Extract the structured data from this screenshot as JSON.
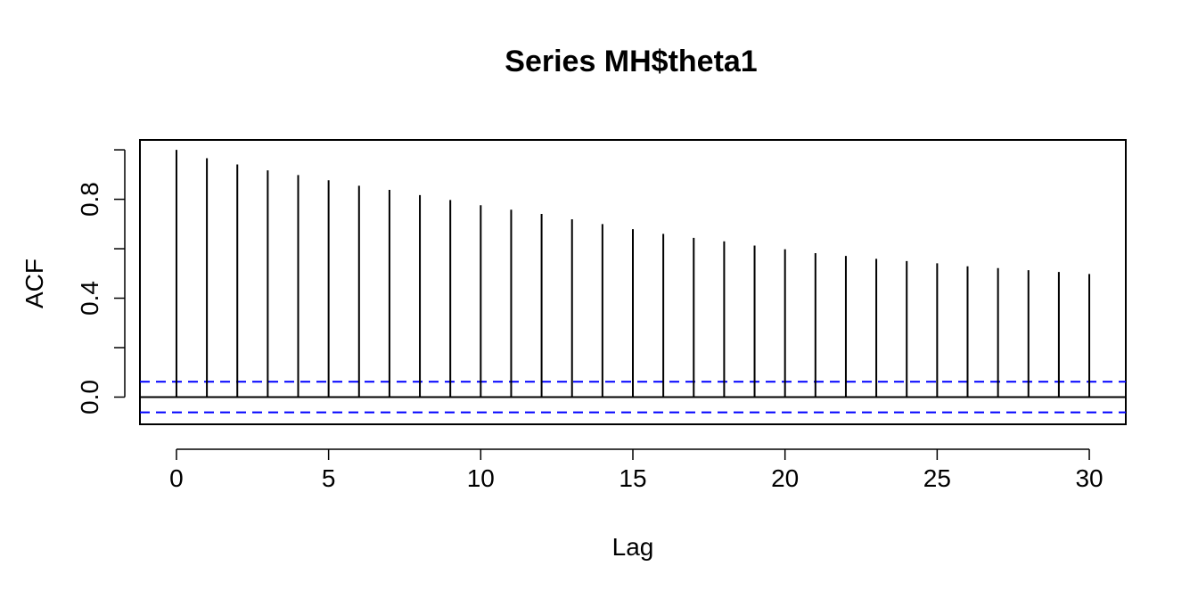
{
  "chart_data": {
    "type": "bar",
    "title": "Series  MH$theta1",
    "xlabel": "Lag",
    "ylabel": "ACF",
    "x": [
      0,
      1,
      2,
      3,
      4,
      5,
      6,
      7,
      8,
      9,
      10,
      11,
      12,
      13,
      14,
      15,
      16,
      17,
      18,
      19,
      20,
      21,
      22,
      23,
      24,
      25,
      26,
      27,
      28,
      29,
      30
    ],
    "values": [
      1.0,
      0.966,
      0.941,
      0.917,
      0.898,
      0.877,
      0.855,
      0.838,
      0.817,
      0.797,
      0.776,
      0.758,
      0.741,
      0.719,
      0.7,
      0.679,
      0.66,
      0.644,
      0.63,
      0.613,
      0.598,
      0.582,
      0.571,
      0.559,
      0.55,
      0.541,
      0.529,
      0.522,
      0.513,
      0.506,
      0.498
    ],
    "xlim": [
      -1.2,
      31.2
    ],
    "ylim": [
      -0.11,
      1.04
    ],
    "x_ticks": [
      "0",
      "5",
      "10",
      "15",
      "20",
      "25",
      "30"
    ],
    "y_ticks": [
      "0.0",
      "0.4",
      "0.8"
    ],
    "y_minor_ticks": [
      0.2,
      0.6
    ],
    "confidence_bound": 0.062,
    "bound_color": "#0000ff",
    "grid": false
  }
}
